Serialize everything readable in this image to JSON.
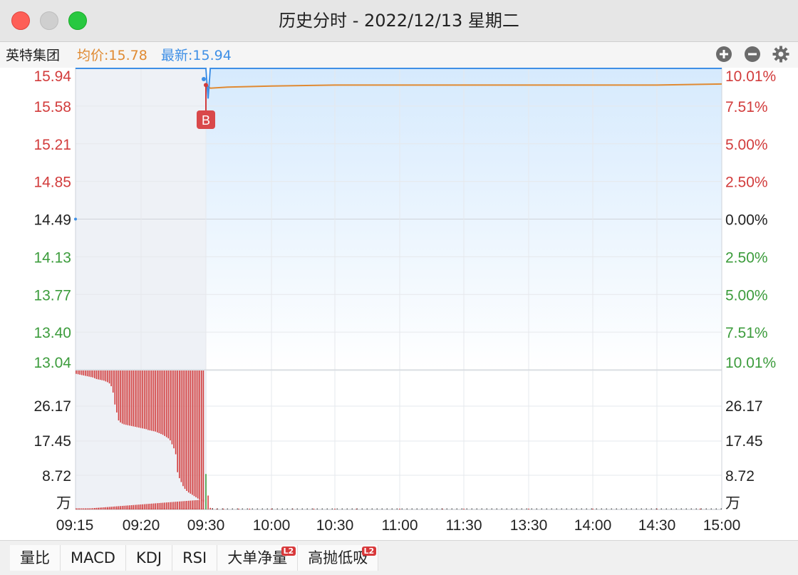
{
  "window": {
    "title": "历史分时 - 2022/12/13 星期二"
  },
  "header": {
    "stock_name": "英特集团",
    "avg_label": "均价:15.78",
    "latest_label": "最新:15.94"
  },
  "controls": [
    {
      "name": "zoom-in-icon"
    },
    {
      "name": "zoom-out-icon"
    },
    {
      "name": "gear-icon"
    }
  ],
  "colors": {
    "up": "#d23c3c",
    "down": "#3c9c3c",
    "price_line": "#3e8fe6",
    "avg_line": "#e08a32"
  },
  "chart_data": {
    "type": "line",
    "price_axis_left": [
      "15.94",
      "15.58",
      "15.21",
      "14.85",
      "14.49",
      "14.13",
      "13.77",
      "13.40",
      "13.04"
    ],
    "price_axis_right": [
      "10.01%",
      "7.51%",
      "5.00%",
      "2.50%",
      "0.00%",
      "2.50%",
      "5.00%",
      "7.51%",
      "10.01%"
    ],
    "volume_axis_labels": [
      "26.17",
      "17.45",
      "8.72",
      "万"
    ],
    "x_ticks": [
      "09:15",
      "09:20",
      "09:30",
      "10:00",
      "10:30",
      "11:00",
      "11:30",
      "13:30",
      "14:00",
      "14:30",
      "15:00"
    ],
    "price_range": [
      13.04,
      15.94
    ],
    "prev_close": 14.49,
    "volume_range": [
      0,
      34.9
    ],
    "marker": {
      "label": "B",
      "time": "09:30",
      "price": 15.78
    },
    "price_series": [
      {
        "t": "09:30",
        "v": 15.94
      },
      {
        "t": "09:31",
        "v": 15.65
      },
      {
        "t": "09:32",
        "v": 15.94
      },
      {
        "t": "15:00",
        "v": 15.94
      }
    ],
    "avg_series": [
      {
        "t": "09:30",
        "v": 15.78
      },
      {
        "t": "09:32",
        "v": 15.75
      },
      {
        "t": "09:40",
        "v": 15.76
      },
      {
        "t": "10:00",
        "v": 15.77
      },
      {
        "t": "10:30",
        "v": 15.78
      },
      {
        "t": "14:30",
        "v": 15.78
      },
      {
        "t": "15:00",
        "v": 15.79
      }
    ],
    "auction_volume_red": [
      33.7,
      33.6,
      33.5,
      33.4,
      33.3,
      33.2,
      33.1,
      33.0,
      32.9,
      32.8,
      32.6,
      32.4,
      32.3,
      32.2,
      32.1,
      32.0,
      31.8,
      31.6,
      31.3,
      30.6,
      29.0,
      26.0,
      24.0,
      22.0,
      21.5,
      21.2,
      21.0,
      20.9,
      20.8,
      20.7,
      20.6,
      20.5,
      20.4,
      20.3,
      20.2,
      20.1,
      20.0,
      19.9,
      19.8,
      19.6,
      19.5,
      19.4,
      19.3,
      19.2,
      19.0,
      18.8,
      18.6,
      18.4,
      18.1,
      17.8,
      17.5,
      17.0,
      16.0,
      15.0,
      13.5,
      9.0,
      7.5,
      6.5,
      5.5,
      4.8,
      4.3,
      3.9,
      3.6,
      3.3,
      3.0,
      2.7,
      2.4,
      2.1,
      1.8,
      1.5
    ],
    "auction_volume_upper": [
      34.9,
      34.9,
      34.9,
      34.9,
      34.9,
      34.9,
      34.9,
      34.9,
      34.9,
      34.9,
      34.9,
      34.9,
      34.9,
      34.9,
      34.9,
      34.9,
      34.9,
      34.9,
      34.9,
      34.9,
      34.9,
      34.9,
      34.9,
      34.9,
      34.9,
      34.9,
      34.9,
      34.9,
      34.9,
      34.9,
      34.9,
      34.9,
      34.9,
      34.9,
      34.9,
      34.9,
      34.9,
      34.9,
      34.9,
      34.9,
      34.9,
      34.9,
      34.9,
      34.9,
      34.9,
      34.9,
      34.9,
      34.9,
      34.9,
      34.9,
      34.9,
      34.9,
      34.9,
      34.9,
      34.9,
      34.9,
      34.9,
      34.9,
      34.9,
      34.9,
      34.9,
      34.9,
      34.9,
      34.9,
      34.9,
      34.9,
      34.9,
      34.9,
      34.9,
      34.9
    ],
    "open_volume": [
      {
        "t": "09:30",
        "v": 8.9,
        "dir": "down"
      },
      {
        "t": "09:31",
        "v": 3.5,
        "dir": "up"
      },
      {
        "t": "09:32",
        "v": 0.4,
        "dir": "up"
      },
      {
        "t": "09:33",
        "v": 0.3,
        "dir": "up"
      },
      {
        "t": "09:35",
        "v": 0.2,
        "dir": "up"
      },
      {
        "t": "09:38",
        "v": 0.2,
        "dir": "up"
      },
      {
        "t": "09:45",
        "v": 0.2,
        "dir": "up"
      },
      {
        "t": "09:50",
        "v": 0.2,
        "dir": "up"
      },
      {
        "t": "10:00",
        "v": 0.2,
        "dir": "up"
      },
      {
        "t": "10:10",
        "v": 0.2,
        "dir": "up"
      },
      {
        "t": "10:20",
        "v": 0.2,
        "dir": "up"
      },
      {
        "t": "10:30",
        "v": 0.2,
        "dir": "up"
      },
      {
        "t": "10:40",
        "v": 0.2,
        "dir": "up"
      },
      {
        "t": "11:00",
        "v": 0.2,
        "dir": "up"
      },
      {
        "t": "11:20",
        "v": 0.2,
        "dir": "up"
      },
      {
        "t": "13:00",
        "v": 0.2,
        "dir": "up"
      },
      {
        "t": "13:30",
        "v": 0.2,
        "dir": "up"
      },
      {
        "t": "14:00",
        "v": 0.2,
        "dir": "up"
      },
      {
        "t": "14:30",
        "v": 0.2,
        "dir": "up"
      },
      {
        "t": "14:50",
        "v": 0.2,
        "dir": "up"
      }
    ]
  },
  "bottom_tabs": [
    {
      "label": "量比",
      "l2": ""
    },
    {
      "label": "MACD",
      "l2": ""
    },
    {
      "label": "KDJ",
      "l2": ""
    },
    {
      "label": "RSI",
      "l2": ""
    },
    {
      "label": "大单净量",
      "l2": "L2"
    },
    {
      "label": "高抛低吸",
      "l2": "L2"
    }
  ]
}
